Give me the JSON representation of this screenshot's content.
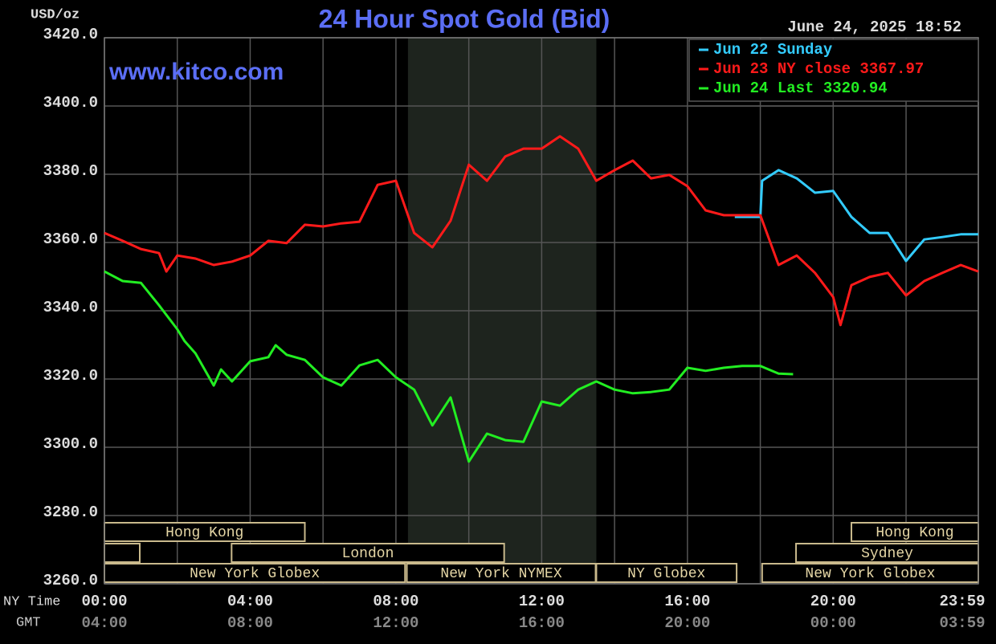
{
  "chart_data": {
    "type": "line",
    "title": "24 Hour Spot Gold (Bid)",
    "date": "June 24, 2025 18:52",
    "y_label": "USD/oz",
    "x_label": "NY Time",
    "x2_label": "GMT",
    "watermark": "www.kitco.com",
    "xlim": [
      0,
      23.983
    ],
    "ylim": [
      3260,
      3420
    ],
    "xticks": [
      {
        "value": 0,
        "label": "00:00"
      },
      {
        "value": 4,
        "label": "04:00"
      },
      {
        "value": 8,
        "label": "08:00"
      },
      {
        "value": 12,
        "label": "12:00"
      },
      {
        "value": 16,
        "label": "16:00"
      },
      {
        "value": 20,
        "label": "20:00"
      },
      {
        "value": 23.983,
        "label": "23:59"
      }
    ],
    "x2ticks": [
      {
        "value": 0,
        "label": "04:00"
      },
      {
        "value": 4,
        "label": "08:00"
      },
      {
        "value": 8,
        "label": "12:00"
      },
      {
        "value": 12,
        "label": "16:00"
      },
      {
        "value": 16,
        "label": "20:00"
      },
      {
        "value": 20,
        "label": "00:00"
      },
      {
        "value": 23.983,
        "label": "03:59"
      }
    ],
    "xgrid": [
      2,
      6,
      10,
      14,
      18,
      22
    ],
    "yticks": [
      {
        "value": 3260,
        "label": "3260.0"
      },
      {
        "value": 3280,
        "label": "3280.0"
      },
      {
        "value": 3300,
        "label": "3300.0"
      },
      {
        "value": 3320,
        "label": "3320.0"
      },
      {
        "value": 3340,
        "label": "3340.0"
      },
      {
        "value": 3360,
        "label": "3360.0"
      },
      {
        "value": 3380,
        "label": "3380.0"
      },
      {
        "value": 3400,
        "label": "3400.0"
      },
      {
        "value": 3420,
        "label": "3420.0"
      }
    ],
    "grid": true,
    "highlight_range": [
      8.33,
      13.5
    ],
    "series": [
      {
        "name": "Jun 22 Sunday",
        "color": "#33ccff",
        "x": [
          17.3,
          18,
          18.05,
          18.5,
          19,
          19.5,
          20,
          20.5,
          21,
          21.5,
          22,
          22.5,
          23,
          23.5,
          23.983
        ],
        "values": [
          3367.5,
          3367.5,
          3378.1,
          3381.2,
          3378.8,
          3374.6,
          3375.1,
          3367.5,
          3362.8,
          3362.8,
          3354.6,
          3360.9,
          3361.6,
          3362.4,
          3362.4
        ]
      },
      {
        "name": "Jun 23 NY close 3367.97",
        "color": "#ff1a1a",
        "x": [
          0,
          0.5,
          1,
          1.5,
          1.7,
          2,
          2.5,
          3,
          3.5,
          4,
          4.5,
          5,
          5.5,
          6,
          6.5,
          7,
          7.5,
          8,
          8.5,
          9,
          9.5,
          10,
          10.5,
          11,
          11.5,
          12,
          12.5,
          13,
          13.5,
          14,
          14.5,
          15,
          15.5,
          16,
          16.5,
          17,
          17.5,
          18,
          18.5,
          19,
          19.5,
          20,
          20.2,
          20.5,
          21,
          21.5,
          22,
          22.5,
          23,
          23.5,
          23.983
        ],
        "values": [
          3362.8,
          3360.5,
          3358.1,
          3356.9,
          3351.5,
          3356.2,
          3355.3,
          3353.4,
          3354.4,
          3356.2,
          3360.5,
          3359.8,
          3365.2,
          3364.7,
          3365.6,
          3366.1,
          3376.9,
          3378.1,
          3362.8,
          3358.6,
          3366.4,
          3382.8,
          3378.1,
          3385.2,
          3387.5,
          3387.5,
          3391.1,
          3387.5,
          3378.1,
          3381.2,
          3384.0,
          3378.8,
          3379.8,
          3376.5,
          3369.4,
          3368.0,
          3368.0,
          3368.0,
          3353.4,
          3356.2,
          3351.1,
          3344.0,
          3335.8,
          3347.5,
          3349.9,
          3351.1,
          3344.5,
          3348.7,
          3351.1,
          3353.4,
          3351.5
        ]
      },
      {
        "name": "Jun 24 Last 3320.94",
        "color": "#22ee22",
        "x": [
          0,
          0.5,
          1,
          1.5,
          2,
          2.2,
          2.5,
          3,
          3.2,
          3.5,
          4,
          4.5,
          4.7,
          5,
          5.5,
          6,
          6.5,
          7,
          7.5,
          8,
          8.5,
          9,
          9.5,
          10,
          10.5,
          11,
          11.5,
          12,
          12.5,
          13,
          13.5,
          14,
          14.5,
          15,
          15.5,
          16,
          16.5,
          17,
          17.5,
          18,
          18.5,
          18.9
        ],
        "values": [
          3351.5,
          3348.7,
          3348.2,
          3341.6,
          3334.6,
          3331.1,
          3327.5,
          3318.1,
          3322.8,
          3319.3,
          3325.2,
          3326.4,
          3329.9,
          3327.1,
          3325.6,
          3320.5,
          3318.1,
          3324.0,
          3325.6,
          3320.5,
          3316.9,
          3306.4,
          3314.6,
          3295.8,
          3304.0,
          3302.1,
          3301.6,
          3313.4,
          3312.2,
          3316.9,
          3319.3,
          3316.9,
          3315.8,
          3316.2,
          3316.9,
          3323.3,
          3322.4,
          3323.3,
          3323.8,
          3323.8,
          3321.6,
          3321.4
        ]
      }
    ],
    "session_rows": [
      [
        {
          "label": "Hong Kong",
          "start": 0,
          "end": 5.5
        },
        {
          "label": "Hong Kong",
          "start": 20.5,
          "end": 23.983
        }
      ],
      [
        {
          "label": null,
          "start": 0,
          "end": 0.97
        },
        {
          "label": "London",
          "start": 3.49,
          "end": 10.97
        },
        {
          "label": "Sydney",
          "start": 18.98,
          "end": 23.983
        }
      ],
      [
        {
          "label": "New York Globex",
          "start": 0,
          "end": 8.25
        },
        {
          "label": "New York NYMEX",
          "start": 8.3,
          "end": 13.48
        },
        {
          "label": "NY Globex",
          "start": 13.5,
          "end": 17.35
        },
        {
          "label": "New York Globex",
          "start": 18.05,
          "end": 23.983
        }
      ]
    ]
  }
}
